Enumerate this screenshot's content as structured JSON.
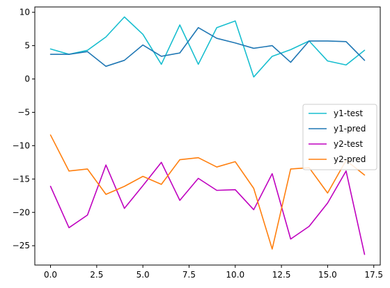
{
  "chart_data": {
    "type": "line",
    "title": "",
    "xlabel": "",
    "ylabel": "",
    "xlim": [
      -0.85,
      17.85
    ],
    "ylim": [
      -27.9,
      10.8
    ],
    "grid": false,
    "legend_position": "center-right",
    "x": [
      0,
      1,
      2,
      3,
      4,
      5,
      6,
      7,
      8,
      9,
      10,
      11,
      12,
      13,
      14,
      15,
      16,
      17
    ],
    "x_ticks": [
      0,
      2.5,
      5,
      7.5,
      10,
      12.5,
      15,
      17.5
    ],
    "x_tick_labels": [
      "0.0",
      "2.5",
      "5.0",
      "7.5",
      "10.0",
      "12.5",
      "15.0",
      "17.5"
    ],
    "y_ticks": [
      10,
      5,
      0,
      -5,
      -10,
      -15,
      -20,
      -25
    ],
    "y_tick_labels": [
      "10",
      "5",
      "0",
      "−5",
      "−10",
      "−15",
      "−20",
      "−25"
    ],
    "series": [
      {
        "name": "y1-test",
        "color": "#17becf",
        "values": [
          4.5,
          3.7,
          4.3,
          6.3,
          9.3,
          6.7,
          2.2,
          8.1,
          2.2,
          7.7,
          8.7,
          0.3,
          3.4,
          4.4,
          5.7,
          2.7,
          2.1,
          4.3
        ]
      },
      {
        "name": "y1-pred",
        "color": "#1f77b4",
        "values": [
          3.7,
          3.7,
          4.1,
          1.9,
          2.8,
          5.1,
          3.4,
          3.9,
          7.7,
          6.1,
          5.4,
          4.6,
          5.0,
          2.5,
          5.7,
          5.7,
          5.6,
          2.8
        ]
      },
      {
        "name": "y2-test",
        "color": "#bf00bf",
        "values": [
          -16.1,
          -22.3,
          -20.4,
          -12.9,
          -19.4,
          -16.0,
          -12.5,
          -18.2,
          -14.9,
          -16.7,
          -16.6,
          -19.6,
          -14.2,
          -24.0,
          -22.1,
          -18.6,
          -13.8,
          -26.3
        ]
      },
      {
        "name": "y2-pred",
        "color": "#ff7f0e",
        "values": [
          -8.4,
          -13.8,
          -13.5,
          -17.3,
          -16.1,
          -14.6,
          -15.8,
          -12.1,
          -11.8,
          -13.2,
          -12.4,
          -16.4,
          -25.5,
          -13.5,
          -13.3,
          -17.1,
          -12.2,
          -14.4
        ]
      }
    ]
  }
}
